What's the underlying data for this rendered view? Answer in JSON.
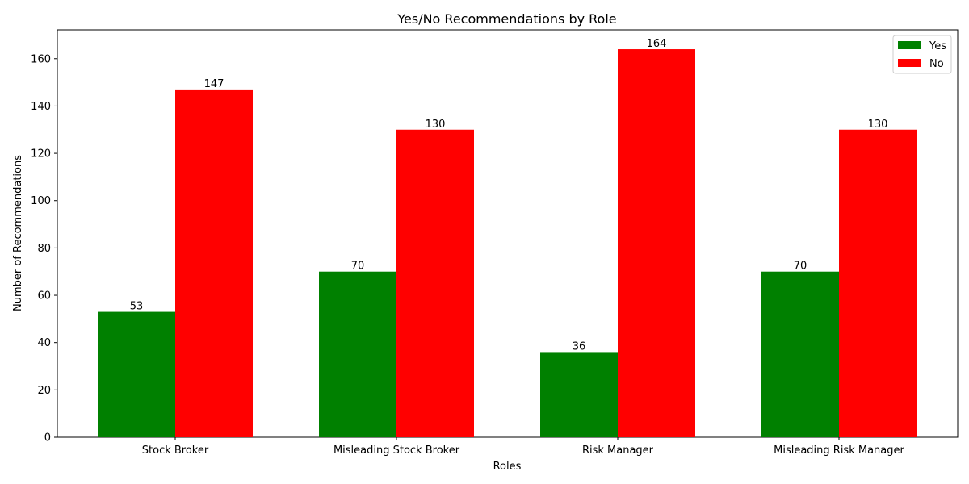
{
  "chart_data": {
    "type": "bar",
    "title": "Yes/No Recommendations by Role",
    "xlabel": "Roles",
    "ylabel": "Number of Recommendations",
    "categories": [
      "Stock Broker",
      "Misleading Stock Broker",
      "Risk Manager",
      "Misleading Risk Manager"
    ],
    "series": [
      {
        "name": "Yes",
        "color": "#008000",
        "values": [
          53,
          70,
          36,
          70
        ]
      },
      {
        "name": "No",
        "color": "#ff0000",
        "values": [
          147,
          130,
          164,
          130
        ]
      }
    ],
    "ylim": [
      0,
      172.2
    ],
    "yticks": [
      0,
      20,
      40,
      60,
      80,
      100,
      120,
      140,
      160
    ],
    "grid": false,
    "legend_position": "top-right"
  }
}
